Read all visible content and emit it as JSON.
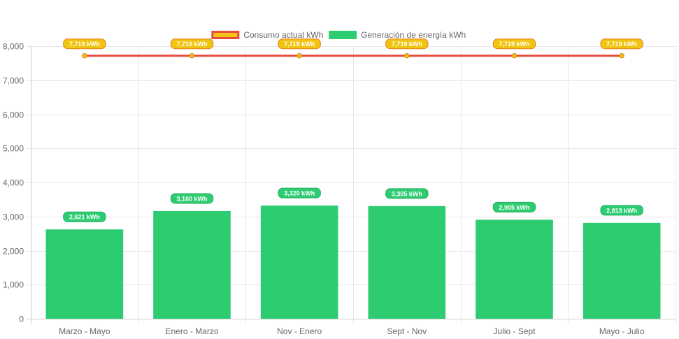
{
  "chart_data": {
    "type": "bar",
    "categories": [
      "Marzo - Mayo",
      "Enero - Marzo",
      "Nov - Enero",
      "Sept - Nov",
      "Julio - Sept",
      "Mayo - Julio"
    ],
    "series": [
      {
        "name": "Consumo actual kWh",
        "type": "line",
        "values": [
          7719,
          7719,
          7719,
          7719,
          7719,
          7719
        ],
        "labels": [
          "7,719 kWh",
          "7,719 kWh",
          "7,719 kWh",
          "7,719 kWh",
          "7,719 kWh",
          "7,719 kWh"
        ],
        "color": "#e74c3c",
        "fill": "#f1c40f"
      },
      {
        "name": "Generación de energía kWh",
        "type": "bar",
        "values": [
          2621,
          3160,
          3320,
          3305,
          2905,
          2813
        ],
        "labels": [
          "2,621 kWh",
          "3,160 kWh",
          "3,320 kWh",
          "3,305 kWh",
          "2,905 kWh",
          "2,813 kWh"
        ],
        "color": "#2ecc71"
      }
    ],
    "ylim": [
      0,
      8000
    ],
    "yticks": [
      "0",
      "1,000",
      "2,000",
      "3,000",
      "4,000",
      "5,000",
      "6,000",
      "7,000",
      "8,000"
    ],
    "legend": "top-center",
    "grid": true
  }
}
